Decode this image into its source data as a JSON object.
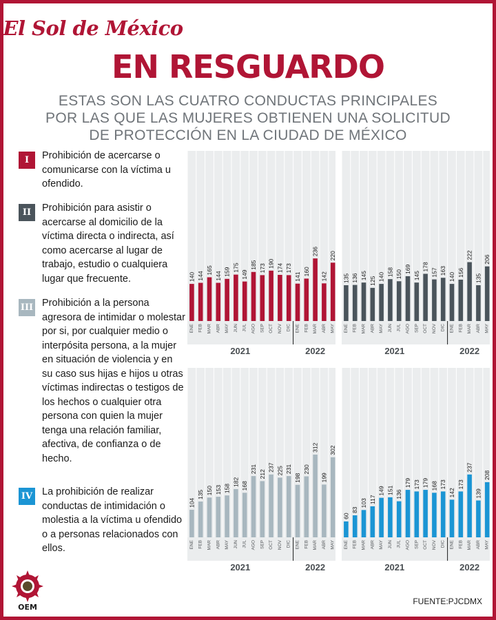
{
  "masthead": "El Sol de México",
  "headline": "EN RESGUARDO",
  "subtitle": [
    "ESTAS SON LAS CUATRO CONDUCTAS PRINCIPALES",
    "POR LAS QUE LAS MUJERES OBTIENEN UNA SOLICITUD",
    "DE PROTECCIÓN EN LA CIUDAD DE MÉXICO"
  ],
  "legend": [
    {
      "numeral": "I",
      "color": "#b01535",
      "text": "Prohibición de acercarse o comunicarse con la víctima u ofendido."
    },
    {
      "numeral": "II",
      "color": "#4a545b",
      "text": "Prohibición para asistir o acercarse al domicilio de la víctima directa o indirecta,  así como acercarse al lugar de trabajo, estudio o cualquiera lugar que frecuente."
    },
    {
      "numeral": "III",
      "color": "#a8b7bf",
      "text": "Prohibición a la persona agresora de intimidar o molestar por si, por cualquier medio o interpósita persona, a la mujer en situación de violencia y en su caso sus hijas e hijos u otras víctimas indirectas o testigos de los hechos o cualquier otra persona con quien la mujer tenga una relación familiar, afectiva, de confianza o de hecho."
    },
    {
      "numeral": "IV",
      "color": "#1b95d4",
      "text": " La prohibición de realizar conductas de intimidación o molestia a la víctima u ofendido o a personas relacionados con ellos."
    }
  ],
  "chart_data": [
    {
      "type": "bar",
      "title": "I",
      "color": "#b01535",
      "categories": [
        "ENE",
        "FEB",
        "MAR",
        "ABR",
        "MAY",
        "JUN",
        "JUL",
        "AGO",
        "SEP",
        "OCT",
        "NOV",
        "DIC",
        "ENE",
        "FEB",
        "MAR",
        "ABR",
        "MAY"
      ],
      "values": [
        140,
        144,
        165,
        144,
        159,
        175,
        149,
        185,
        173,
        190,
        174,
        173,
        141,
        160,
        236,
        142,
        220
      ],
      "year_groups": [
        {
          "label": "2021",
          "count": 12
        },
        {
          "label": "2022",
          "count": 5
        }
      ]
    },
    {
      "type": "bar",
      "title": "II",
      "color": "#4a545b",
      "categories": [
        "ENE",
        "FEB",
        "MAR",
        "ABR",
        "MAY",
        "JUN",
        "JUL",
        "AGO",
        "SEP",
        "OCT",
        "NOV",
        "DIC",
        "ENE",
        "FEB",
        "MAR",
        "ABR",
        "MAY"
      ],
      "values": [
        135,
        136,
        145,
        125,
        140,
        158,
        150,
        169,
        145,
        178,
        157,
        163,
        140,
        156,
        222,
        135,
        206
      ],
      "year_groups": [
        {
          "label": "2021",
          "count": 12
        },
        {
          "label": "2022",
          "count": 5
        }
      ]
    },
    {
      "type": "bar",
      "title": "III",
      "color": "#a8b7bf",
      "categories": [
        "ENE",
        "FEB",
        "MAR",
        "ABR",
        "MAY",
        "JUN",
        "JUL",
        "AGO",
        "SEP",
        "OCT",
        "NOV",
        "DIC",
        "ENE",
        "FEB",
        "MAR",
        "ABR",
        "MAY"
      ],
      "values": [
        104,
        135,
        150,
        153,
        158,
        182,
        168,
        231,
        212,
        237,
        225,
        231,
        198,
        230,
        312,
        199,
        302
      ],
      "year_groups": [
        {
          "label": "2021",
          "count": 12
        },
        {
          "label": "2022",
          "count": 5
        }
      ]
    },
    {
      "type": "bar",
      "title": "IV",
      "color": "#1b95d4",
      "categories": [
        "ENE",
        "FEB",
        "MAR",
        "ABR",
        "MAY",
        "JUN",
        "JUL",
        "AGO",
        "SEP",
        "OCT",
        "NOV",
        "DIC",
        "ENE",
        "FEB",
        "MAR",
        "ABR",
        "MAY"
      ],
      "values": [
        60,
        83,
        103,
        117,
        149,
        151,
        136,
        179,
        173,
        179,
        168,
        173,
        142,
        173,
        237,
        139,
        208
      ],
      "year_groups": [
        {
          "label": "2021",
          "count": 12
        },
        {
          "label": "2022",
          "count": 5
        }
      ]
    }
  ],
  "logo": {
    "text": "OEM",
    "color": "#b01535"
  },
  "source": "FUENTE:PJCDMX"
}
